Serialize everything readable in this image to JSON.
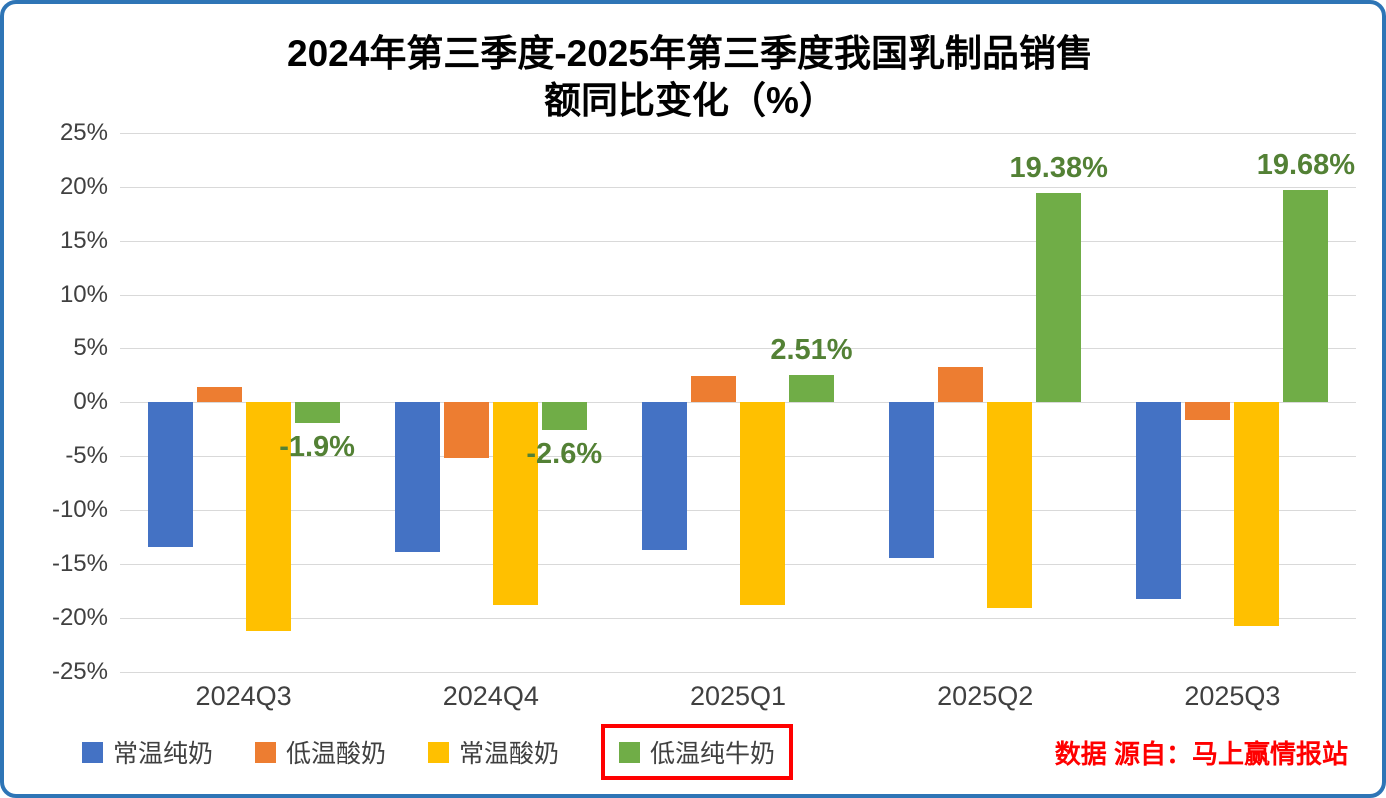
{
  "chart_data": {
    "type": "bar",
    "title": "2024年第三季度-2025年第三季度我国乳制品销售额同比变化（%）",
    "title_line1": "2024年第三季度-2025年第三季度我国乳制品销售",
    "title_line2": "额同比变化（%）",
    "categories": [
      "2024Q3",
      "2024Q4",
      "2025Q1",
      "2025Q2",
      "2025Q3"
    ],
    "series": [
      {
        "name": "常温纯奶",
        "color": "#4472C4",
        "values": [
          -13.4,
          -13.9,
          -13.7,
          -14.4,
          -18.2
        ]
      },
      {
        "name": "低温酸奶",
        "color": "#ED7D31",
        "values": [
          1.4,
          -5.2,
          2.4,
          3.3,
          -1.6
        ]
      },
      {
        "name": "常温酸奶",
        "color": "#FFC000",
        "values": [
          -21.2,
          -18.8,
          -18.8,
          -19.1,
          -20.7
        ]
      },
      {
        "name": "低温纯牛奶",
        "color": "#70AD47",
        "values": [
          -1.9,
          -2.6,
          2.51,
          19.38,
          19.68
        ],
        "highlighted": true
      }
    ],
    "data_labels": [
      {
        "series": "低温纯牛奶",
        "category": "2024Q3",
        "text": "-1.9%"
      },
      {
        "series": "低温纯牛奶",
        "category": "2024Q4",
        "text": "-2.6%"
      },
      {
        "series": "低温纯牛奶",
        "category": "2025Q1",
        "text": "2.51%"
      },
      {
        "series": "低温纯牛奶",
        "category": "2025Q2",
        "text": "19.38%"
      },
      {
        "series": "低温纯牛奶",
        "category": "2025Q3",
        "text": "19.68%"
      }
    ],
    "y_ticks": [
      "25%",
      "20%",
      "15%",
      "10%",
      "5%",
      "0%",
      "-5%",
      "-10%",
      "-15%",
      "-20%",
      "-25%"
    ],
    "ylim": [
      -25,
      25
    ],
    "grid": true,
    "legend_position": "bottom"
  },
  "legend": {
    "highlight_series": "低温纯牛奶",
    "highlight_color": "#FF0000"
  },
  "source_note": "数据 源自：马上赢情报站",
  "colors": {
    "frame_border": "#2E75B6",
    "gridline": "#D9D9D9",
    "data_label": "#538135",
    "axis_text": "#404040",
    "source_text": "#FF0000"
  }
}
